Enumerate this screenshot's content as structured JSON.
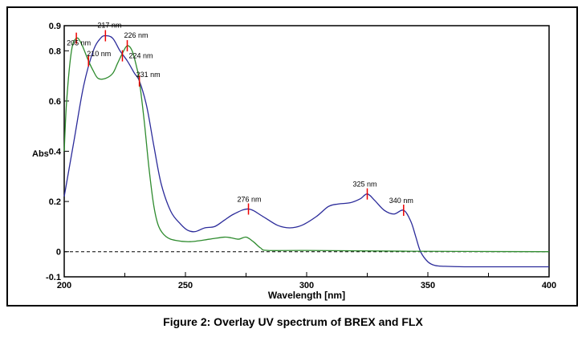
{
  "chart_data": {
    "type": "line",
    "title": "",
    "xlabel": "Wavelength [nm]",
    "ylabel": "Abs",
    "xlim": [
      200,
      400
    ],
    "ylim": [
      -0.1,
      0.9
    ],
    "xticks": [
      "200",
      "250",
      "300",
      "350",
      "400"
    ],
    "yticks": [
      "-0.1",
      "0",
      "0.2",
      "0.4",
      "0.6",
      "0.8",
      "0.9"
    ],
    "baseline": 0,
    "series": [
      {
        "name": "BREX",
        "color": "#2b2b9a",
        "x": [
          200,
          204,
          208,
          212,
          215,
          217,
          220,
          223,
          226,
          229,
          231,
          234,
          237,
          240,
          244,
          248,
          251,
          254,
          258,
          262,
          266,
          270,
          276,
          282,
          288,
          293,
          298,
          304,
          309,
          313,
          318,
          322,
          325,
          328,
          332,
          336,
          340,
          343,
          345,
          347,
          350,
          353,
          357,
          365,
          380,
          400
        ],
        "y": [
          0.22,
          0.44,
          0.66,
          0.8,
          0.85,
          0.86,
          0.85,
          0.8,
          0.76,
          0.71,
          0.68,
          0.58,
          0.42,
          0.27,
          0.16,
          0.11,
          0.085,
          0.08,
          0.095,
          0.1,
          0.125,
          0.15,
          0.17,
          0.14,
          0.105,
          0.095,
          0.105,
          0.14,
          0.18,
          0.19,
          0.195,
          0.21,
          0.23,
          0.205,
          0.165,
          0.15,
          0.165,
          0.12,
          0.06,
          0.0,
          -0.04,
          -0.055,
          -0.058,
          -0.06,
          -0.06,
          -0.06
        ]
      },
      {
        "name": "FLX",
        "color": "#2e8b2e",
        "x": [
          200,
          201,
          203,
          205,
          207,
          210,
          212,
          214,
          217,
          220,
          222,
          224,
          226,
          228,
          230,
          231,
          233,
          235,
          237,
          239,
          242,
          246,
          252,
          260,
          266,
          269,
          272,
          275,
          278,
          281,
          284,
          300,
          340,
          400
        ],
        "y": [
          0.4,
          0.6,
          0.8,
          0.85,
          0.83,
          0.76,
          0.72,
          0.69,
          0.69,
          0.71,
          0.75,
          0.79,
          0.82,
          0.8,
          0.73,
          0.68,
          0.52,
          0.33,
          0.18,
          0.1,
          0.06,
          0.045,
          0.04,
          0.05,
          0.058,
          0.055,
          0.05,
          0.058,
          0.04,
          0.015,
          0.005,
          0.005,
          0.002,
          0.0
        ]
      }
    ],
    "annotations": [
      {
        "label": "205 nm",
        "x": 205,
        "y": 0.85
      },
      {
        "label": "210 nm",
        "x": 210,
        "y": 0.76
      },
      {
        "label": "217 nm",
        "x": 217,
        "y": 0.86
      },
      {
        "label": "224 nm",
        "x": 224,
        "y": 0.78
      },
      {
        "label": "226 nm",
        "x": 226,
        "y": 0.82
      },
      {
        "label": "231 nm",
        "x": 231,
        "y": 0.68
      },
      {
        "label": "276 nm",
        "x": 276,
        "y": 0.17
      },
      {
        "label": "325 nm",
        "x": 325,
        "y": 0.23
      },
      {
        "label": "340 nm",
        "x": 340,
        "y": 0.165
      }
    ]
  },
  "caption": "Figure 2: Overlay UV spectrum of BREX and FLX"
}
